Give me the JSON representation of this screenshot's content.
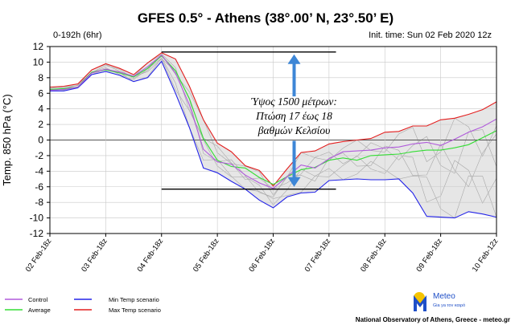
{
  "header": {
    "title": "GFES 0.5° - Athens (38°.00’ N, 23°.50’ E)",
    "range_label": "0-192h (6hr)",
    "init_time": "Init. time: Sun 02 Feb 2020 12z"
  },
  "footer": {
    "credit": "National Observatory of Athens, Greece - meteo.gr",
    "logo_name": "Meteo",
    "logo_tagline": "Gia ya\nτον καιρό"
  },
  "chart_data": {
    "type": "line",
    "ylabel": "Temp. 850 hPa (°C)",
    "ylim": [
      -12,
      12
    ],
    "yticks": [
      -12,
      -10,
      -8,
      -6,
      -4,
      -2,
      0,
      2,
      4,
      6,
      8,
      10,
      12
    ],
    "xticks": [
      "02 Feb-18z",
      "03 Feb-18z",
      "04 Feb-18z",
      "05 Feb-18z",
      "06 Feb-18z",
      "07 Feb-18z",
      "08 Feb-18z",
      "09 Feb-18z",
      "10 Feb-12z"
    ],
    "x_hours_range": [
      0,
      192
    ],
    "grid": true,
    "legend_placement": "bottom-left",
    "series": [
      {
        "name": "Control",
        "color": "#b05adb",
        "points": [
          [
            0,
            6.4
          ],
          [
            6,
            6.5
          ],
          [
            12,
            6.8
          ],
          [
            18,
            8.6
          ],
          [
            24,
            9.1
          ],
          [
            30,
            8.7
          ],
          [
            36,
            8.2
          ],
          [
            42,
            9.4
          ],
          [
            48,
            10.9
          ],
          [
            54,
            8.6
          ],
          [
            60,
            4.5
          ],
          [
            66,
            -1.2
          ],
          [
            72,
            -2.8
          ],
          [
            78,
            -3.1
          ],
          [
            84,
            -4.5
          ],
          [
            90,
            -5.5
          ],
          [
            96,
            -6.2
          ],
          [
            102,
            -4.7
          ],
          [
            108,
            -3.2
          ],
          [
            114,
            -3.6
          ],
          [
            120,
            -2.4
          ],
          [
            126,
            -1.5
          ],
          [
            132,
            -1.4
          ],
          [
            138,
            -1.3
          ],
          [
            144,
            -1.0
          ],
          [
            150,
            -0.9
          ],
          [
            156,
            -0.5
          ],
          [
            162,
            -0.3
          ],
          [
            168,
            -0.7
          ],
          [
            174,
            0.1
          ],
          [
            180,
            1.0
          ],
          [
            186,
            1.7
          ],
          [
            192,
            2.7
          ]
        ]
      },
      {
        "name": "Average",
        "color": "#33dd33",
        "points": [
          [
            0,
            6.5
          ],
          [
            6,
            6.6
          ],
          [
            12,
            6.8
          ],
          [
            18,
            8.7
          ],
          [
            24,
            9.0
          ],
          [
            30,
            8.6
          ],
          [
            36,
            8.1
          ],
          [
            42,
            9.2
          ],
          [
            48,
            10.8
          ],
          [
            54,
            8.9
          ],
          [
            60,
            5.3
          ],
          [
            66,
            0.2
          ],
          [
            72,
            -2.6
          ],
          [
            78,
            -3.4
          ],
          [
            84,
            -3.6
          ],
          [
            90,
            -4.8
          ],
          [
            96,
            -5.7
          ],
          [
            102,
            -4.7
          ],
          [
            108,
            -3.8
          ],
          [
            114,
            -3.5
          ],
          [
            120,
            -2.6
          ],
          [
            126,
            -2.3
          ],
          [
            132,
            -2.6
          ],
          [
            138,
            -2.0
          ],
          [
            144,
            -1.9
          ],
          [
            150,
            -1.8
          ],
          [
            156,
            -1.5
          ],
          [
            162,
            -1.3
          ],
          [
            168,
            -1.3
          ],
          [
            174,
            -1.0
          ],
          [
            180,
            -0.6
          ],
          [
            186,
            0.3
          ],
          [
            192,
            1.2
          ]
        ]
      },
      {
        "name": "Min Temp scenario",
        "color": "#2323e8",
        "points": [
          [
            0,
            6.3
          ],
          [
            6,
            6.3
          ],
          [
            12,
            6.7
          ],
          [
            18,
            8.4
          ],
          [
            24,
            8.8
          ],
          [
            30,
            8.3
          ],
          [
            36,
            7.5
          ],
          [
            42,
            8.0
          ],
          [
            48,
            10.1
          ],
          [
            54,
            6.0
          ],
          [
            60,
            1.6
          ],
          [
            66,
            -3.6
          ],
          [
            72,
            -4.2
          ],
          [
            78,
            -5.3
          ],
          [
            84,
            -6.3
          ],
          [
            90,
            -7.7
          ],
          [
            96,
            -8.7
          ],
          [
            102,
            -7.3
          ],
          [
            108,
            -6.8
          ],
          [
            114,
            -6.7
          ],
          [
            120,
            -5.2
          ],
          [
            126,
            -5.1
          ],
          [
            132,
            -5.0
          ],
          [
            138,
            -5.1
          ],
          [
            144,
            -5.1
          ],
          [
            150,
            -5.0
          ],
          [
            156,
            -6.8
          ],
          [
            162,
            -9.8
          ],
          [
            168,
            -9.9
          ],
          [
            174,
            -10.0
          ],
          [
            180,
            -9.2
          ],
          [
            186,
            -9.5
          ],
          [
            192,
            -9.9
          ]
        ]
      },
      {
        "name": "Max Temp scenario",
        "color": "#e31e1e",
        "points": [
          [
            0,
            6.8
          ],
          [
            6,
            6.9
          ],
          [
            12,
            7.2
          ],
          [
            18,
            9.0
          ],
          [
            24,
            9.8
          ],
          [
            30,
            9.2
          ],
          [
            36,
            8.4
          ],
          [
            42,
            9.9
          ],
          [
            48,
            11.2
          ],
          [
            54,
            10.4
          ],
          [
            60,
            6.9
          ],
          [
            66,
            2.6
          ],
          [
            72,
            -0.4
          ],
          [
            78,
            -1.5
          ],
          [
            84,
            -3.3
          ],
          [
            90,
            -3.9
          ],
          [
            96,
            -5.9
          ],
          [
            102,
            -3.7
          ],
          [
            108,
            -1.6
          ],
          [
            114,
            -1.4
          ],
          [
            120,
            -0.5
          ],
          [
            126,
            -0.2
          ],
          [
            132,
            0.0
          ],
          [
            138,
            0.2
          ],
          [
            144,
            1.0
          ],
          [
            150,
            1.1
          ],
          [
            156,
            1.8
          ],
          [
            162,
            1.8
          ],
          [
            168,
            2.6
          ],
          [
            174,
            2.8
          ],
          [
            180,
            3.3
          ],
          [
            186,
            3.9
          ],
          [
            192,
            4.9
          ]
        ]
      }
    ],
    "annotations": {
      "text_lines": [
        "Ύψος 1500 μέτρων:",
        "Πτώση 17 έως 18",
        "βαθμών Κελσίου"
      ],
      "hline_upper_y": 11.3,
      "hline_lower_y": -6.3,
      "hline_x_range": [
        48,
        123
      ],
      "arrow_x": 105,
      "arrow_up": [
        5.6,
        11.0
      ],
      "arrow_down": [
        -0.1,
        -6.0
      ]
    }
  }
}
